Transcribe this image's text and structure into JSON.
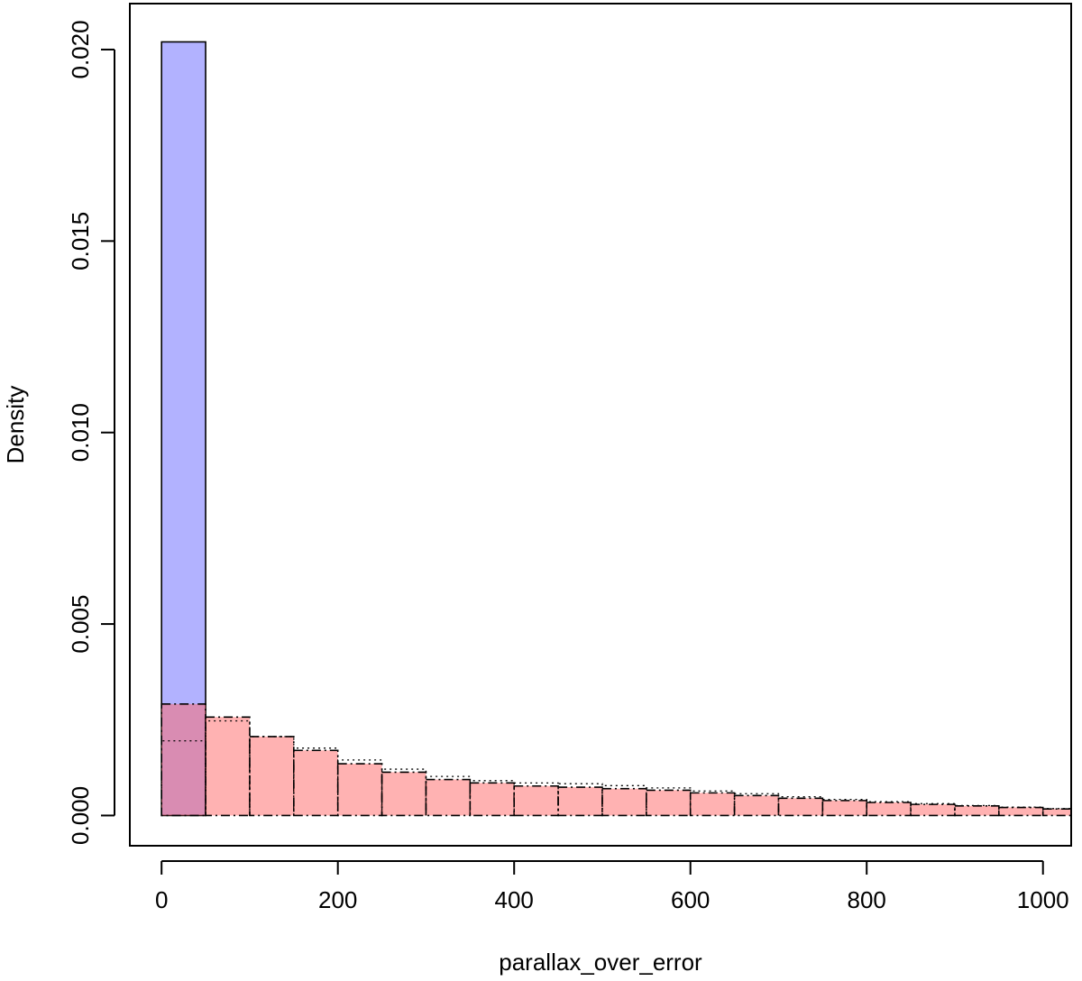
{
  "chart_data": {
    "type": "bar",
    "title": "",
    "xlabel": "parallax_over_error",
    "ylabel": "Density",
    "xlim": [
      -36,
      1032
    ],
    "ylim": [
      -0.00079,
      0.0212
    ],
    "xticks": [
      0,
      200,
      400,
      600,
      800,
      1000
    ],
    "yticks": [
      0.0,
      0.005,
      0.01,
      0.015,
      0.02
    ],
    "ytick_labels": [
      "0.000",
      "0.005",
      "0.010",
      "0.015",
      "0.020"
    ],
    "grid": false,
    "legend": "none",
    "bin_width": 50,
    "bin_edges": [
      0,
      50,
      100,
      150,
      200,
      250,
      300,
      350,
      400,
      450,
      500,
      550,
      600,
      650,
      700,
      750,
      800,
      850,
      900,
      950,
      1000,
      1050
    ],
    "series": [
      {
        "color": "#b3b3ff",
        "line_style": "solid",
        "values": [
          0.0202
        ]
      },
      {
        "color": "#ffb3b3",
        "line_style": "dashdot",
        "values": [
          0.00291,
          0.00257,
          0.00206,
          0.0017,
          0.00135,
          0.00113,
          0.00094,
          0.00085,
          0.00077,
          0.00074,
          0.0007,
          0.00066,
          0.00059,
          0.00052,
          0.00045,
          0.00039,
          0.00034,
          0.00029,
          0.00025,
          0.00021,
          0.00017
        ]
      },
      {
        "color": "#000000",
        "line_style": "dotted",
        "values": [
          0.00195,
          0.00247,
          0.00206,
          0.00176,
          0.00145,
          0.00121,
          0.00102,
          0.00091,
          0.00085,
          0.00083,
          0.00078,
          0.00072,
          0.00064,
          0.00057,
          0.00049,
          0.00042,
          0.00036,
          0.00031,
          0.00026,
          0.00022,
          0.00018
        ]
      }
    ]
  }
}
